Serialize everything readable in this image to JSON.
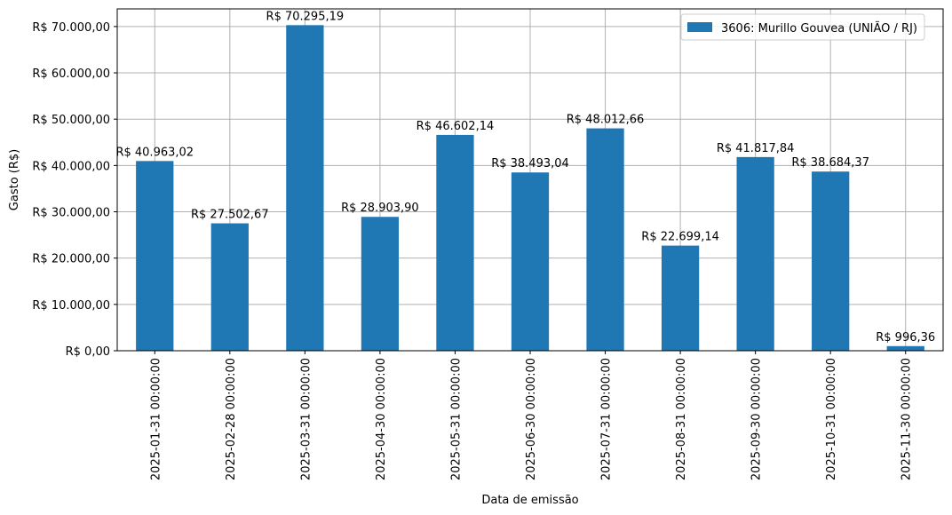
{
  "chart_data": {
    "type": "bar",
    "xlabel": "Data de emissão",
    "ylabel": "Gasto (R$)",
    "categories": [
      "2025-01-31 00:00:00",
      "2025-02-28 00:00:00",
      "2025-03-31 00:00:00",
      "2025-04-30 00:00:00",
      "2025-05-31 00:00:00",
      "2025-06-30 00:00:00",
      "2025-07-31 00:00:00",
      "2025-08-31 00:00:00",
      "2025-09-30 00:00:00",
      "2025-10-31 00:00:00",
      "2025-11-30 00:00:00"
    ],
    "series": [
      {
        "name": "3606: Murillo Gouvea (UNIÃO / RJ)",
        "color": "#1f77b4",
        "values": [
          40963.02,
          27502.67,
          70295.19,
          28903.9,
          46602.14,
          38493.04,
          48012.66,
          22699.14,
          41817.84,
          38684.37,
          996.36
        ],
        "data_labels": [
          "R$ 40.963,02",
          "R$ 27.502,67",
          "R$ 70.295,19",
          "R$ 28.903,90",
          "R$ 46.602,14",
          "R$ 38.493,04",
          "R$ 48.012,66",
          "R$ 22.699,14",
          "R$ 41.817,84",
          "R$ 38.684,37",
          "R$ 996,36"
        ]
      }
    ],
    "ylim": [
      0,
      73810
    ],
    "yticks": [
      0,
      10000,
      20000,
      30000,
      40000,
      50000,
      60000,
      70000
    ],
    "ytick_labels": [
      "R$ 0,00",
      "R$ 10.000,00",
      "R$ 20.000,00",
      "R$ 30.000,00",
      "R$ 40.000,00",
      "R$ 50.000,00",
      "R$ 60.000,00",
      "R$ 70.000,00"
    ],
    "grid": true,
    "legend_position": "top-right"
  }
}
